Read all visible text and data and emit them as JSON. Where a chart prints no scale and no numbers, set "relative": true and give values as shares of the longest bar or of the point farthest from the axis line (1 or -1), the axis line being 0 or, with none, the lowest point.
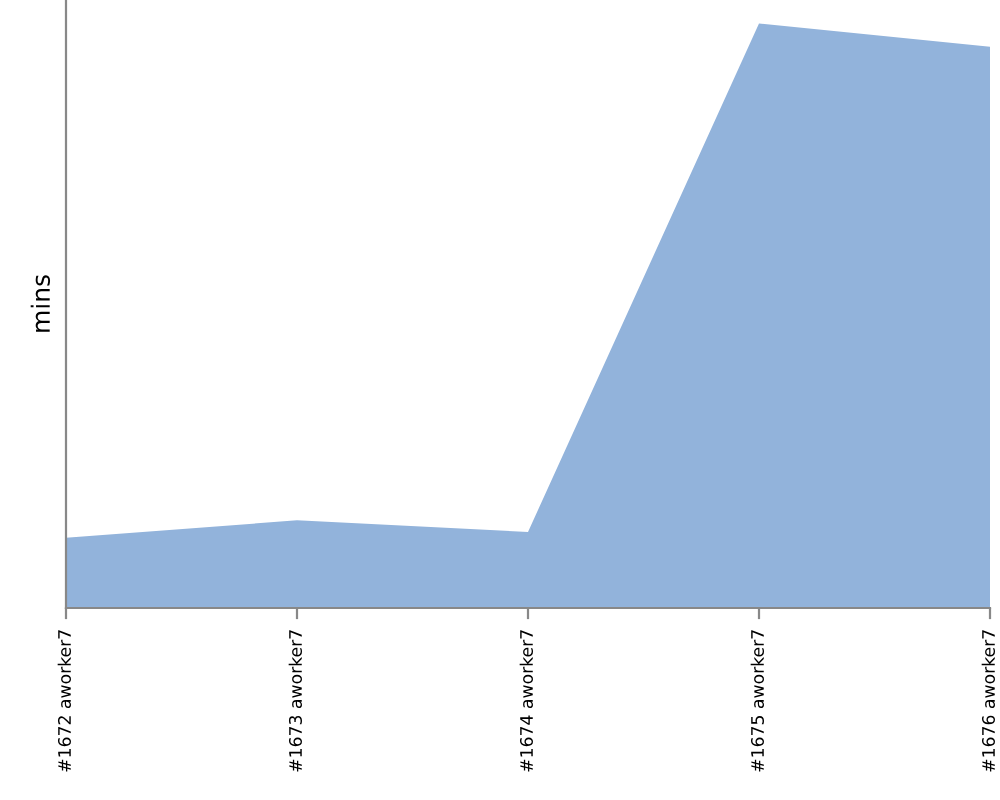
{
  "chart_data": {
    "type": "area",
    "ylabel": "mins",
    "relative": true,
    "categories": [
      "#1672 aworker7",
      "#1673 aworker7",
      "#1674 aworker7",
      "#1675 aworker7",
      "#1676 aworker7"
    ],
    "series": [
      {
        "color": "#92b3db",
        "values": [
          0.12,
          0.15,
          0.13,
          1,
          0.96
        ]
      }
    ]
  }
}
